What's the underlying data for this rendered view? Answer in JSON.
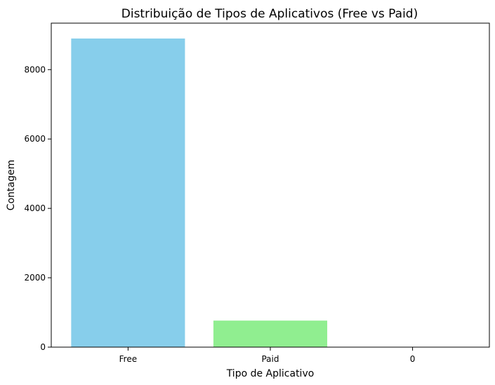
{
  "chart_data": {
    "type": "bar",
    "title": "Distribuição de Tipos de Aplicativos (Free vs Paid)",
    "xlabel": "Tipo de Aplicativo",
    "ylabel": "Contagem",
    "categories": [
      "Free",
      "Paid",
      "0"
    ],
    "values": [
      8897,
      765,
      1
    ],
    "colors": [
      "#87ceeb",
      "#90ee90",
      "#ffb6c1"
    ],
    "ylim": [
      0,
      9340
    ],
    "yticks": [
      0,
      2000,
      4000,
      6000,
      8000
    ],
    "ytick_labels": [
      "0",
      "2000",
      "4000",
      "6000",
      "8000"
    ],
    "grid": false,
    "legend": "none"
  }
}
